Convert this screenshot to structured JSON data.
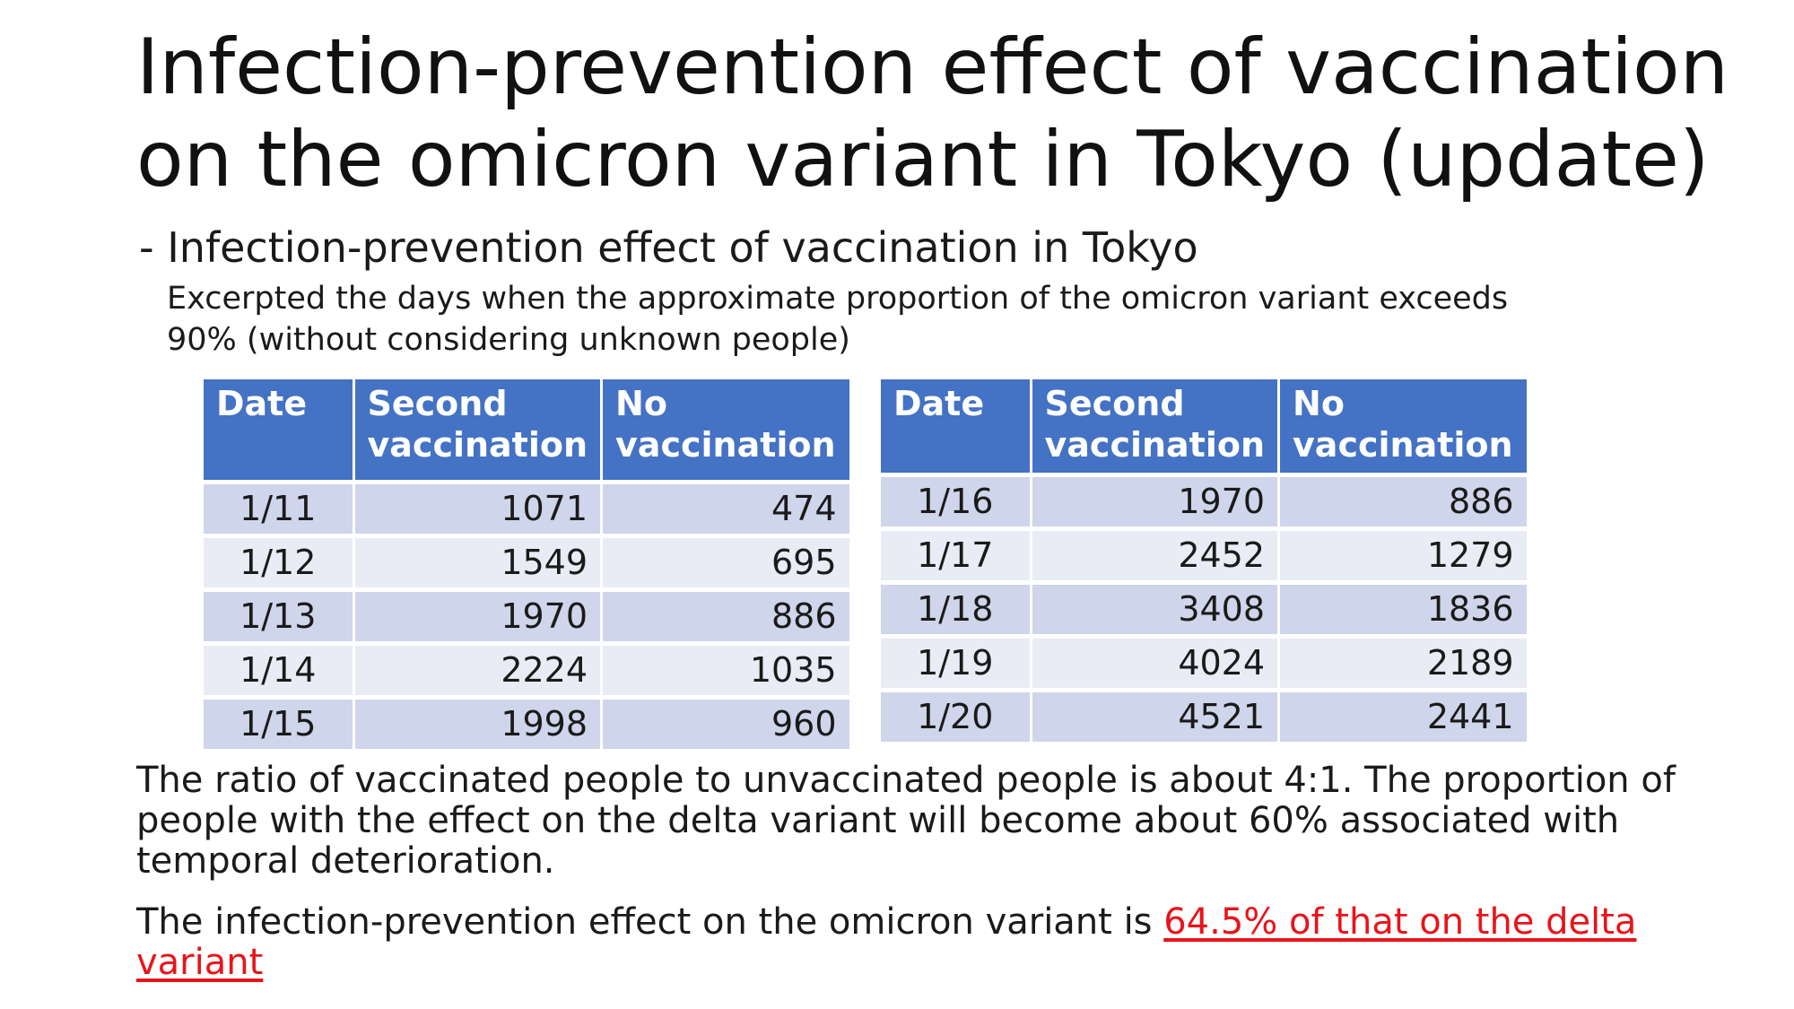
{
  "slide": {
    "title_line1": "Infection-prevention effect of vaccination",
    "title_line2": "on the omicron variant in Tokyo (update)",
    "subtitle": "- Infection-prevention effect of vaccination in Tokyo",
    "note": "Excerpted the days when the approximate proportion of the omicron variant exceeds 90% (without considering unknown people)"
  },
  "tables": {
    "headers": {
      "date": "Date",
      "second_vaccination": "Second vaccination",
      "no_vaccination": "No vaccination"
    },
    "left": [
      {
        "date": "1/11",
        "second": "1071",
        "none": "474"
      },
      {
        "date": "1/12",
        "second": "1549",
        "none": "695"
      },
      {
        "date": "1/13",
        "second": "1970",
        "none": "886"
      },
      {
        "date": "1/14",
        "second": "2224",
        "none": "1035"
      },
      {
        "date": "1/15",
        "second": "1998",
        "none": "960"
      }
    ],
    "right": [
      {
        "date": "1/16",
        "second": "1970",
        "none": "886"
      },
      {
        "date": "1/17",
        "second": "2452",
        "none": "1279"
      },
      {
        "date": "1/18",
        "second": "3408",
        "none": "1836"
      },
      {
        "date": "1/19",
        "second": "4024",
        "none": "2189"
      },
      {
        "date": "1/20",
        "second": "4521",
        "none": "2441"
      }
    ]
  },
  "conclusion": "The ratio of vaccinated people to unvaccinated people is about 4:1. The proportion of people with the effect on the delta variant will become about 60% associated with temporal deterioration.",
  "finding": {
    "prefix": "The infection-prevention effect on the omicron variant is ",
    "highlight": "64.5% of that on the delta variant"
  },
  "colors": {
    "header_bg": "#4472c4",
    "row_odd": "#cfd5ea",
    "row_even": "#e9ebf5",
    "highlight": "#e8141b"
  }
}
